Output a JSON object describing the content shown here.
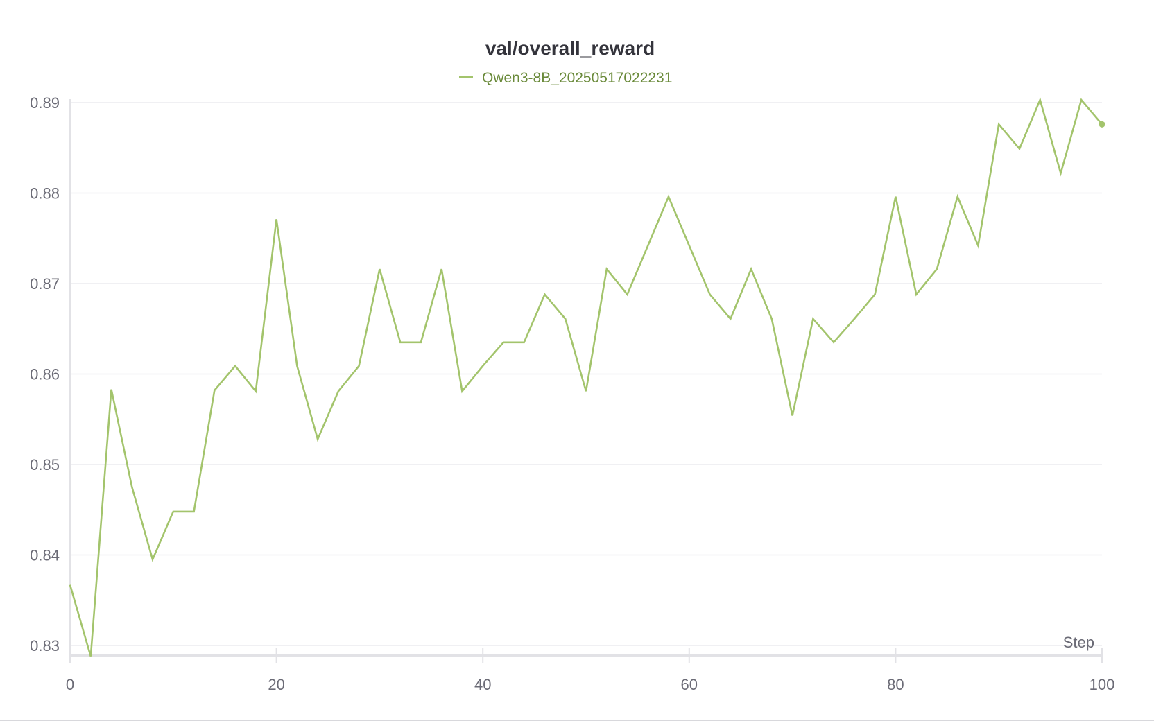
{
  "chart_data": {
    "type": "line",
    "title": "val/overall_reward",
    "xlabel": "Step",
    "ylabel": "",
    "xlim": [
      0,
      100
    ],
    "ylim": [
      0.829,
      0.8905
    ],
    "x_ticks": [
      0,
      20,
      40,
      60,
      80,
      100
    ],
    "y_ticks": [
      0.83,
      0.84,
      0.85,
      0.86,
      0.87,
      0.88,
      0.89
    ],
    "grid": true,
    "legend_position": "top-center",
    "series": [
      {
        "name": "Qwen3-8B_20250517022231",
        "color": "#a3c46c",
        "x": [
          0,
          2,
          4,
          6,
          8,
          10,
          12,
          14,
          16,
          18,
          20,
          22,
          24,
          26,
          28,
          30,
          32,
          34,
          36,
          38,
          40,
          42,
          44,
          46,
          48,
          50,
          52,
          54,
          56,
          58,
          60,
          62,
          64,
          66,
          68,
          70,
          72,
          74,
          76,
          78,
          80,
          82,
          84,
          86,
          88,
          90,
          92,
          94,
          96,
          98,
          100
        ],
        "y": [
          0.8367,
          0.8288,
          0.8583,
          0.8475,
          0.8395,
          0.8448,
          0.8448,
          0.8582,
          0.8609,
          0.8581,
          0.8771,
          0.8609,
          0.8528,
          0.8581,
          0.8609,
          0.8716,
          0.8635,
          0.8635,
          0.8716,
          0.8581,
          0.8609,
          0.8635,
          0.8635,
          0.8688,
          0.8661,
          0.8581,
          0.8716,
          0.8688,
          0.8742,
          0.8796,
          0.8742,
          0.8688,
          0.8661,
          0.8716,
          0.8661,
          0.8554,
          0.8661,
          0.8635,
          0.8661,
          0.8688,
          0.8796,
          0.8688,
          0.8716,
          0.8796,
          0.8742,
          0.8876,
          0.8849,
          0.8903,
          0.8822,
          0.8903,
          0.8876
        ]
      }
    ],
    "legend_text_color": "#6a8a3a"
  }
}
